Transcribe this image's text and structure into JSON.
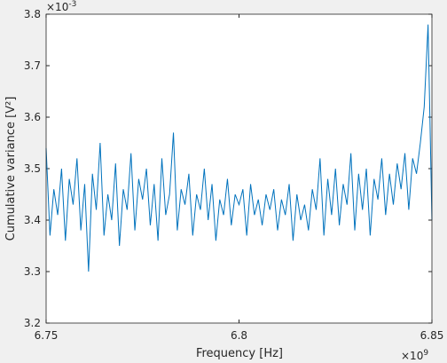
{
  "chart_data": {
    "type": "line",
    "x_label": "Frequency [Hz]",
    "y_label": "Cumulative variance [V²]",
    "x_exponent_base": "×10",
    "x_exponent": "9",
    "y_exponent_base": "×10",
    "y_exponent": "-3",
    "x": [
      6.75,
      6.751,
      6.752,
      6.753,
      6.754,
      6.755,
      6.756,
      6.757,
      6.758,
      6.759,
      6.76,
      6.761,
      6.762,
      6.763,
      6.764,
      6.765,
      6.766,
      6.767,
      6.768,
      6.769,
      6.77,
      6.771,
      6.772,
      6.773,
      6.774,
      6.775,
      6.776,
      6.777,
      6.778,
      6.779,
      6.78,
      6.781,
      6.782,
      6.783,
      6.784,
      6.785,
      6.786,
      6.787,
      6.788,
      6.789,
      6.79,
      6.791,
      6.792,
      6.793,
      6.794,
      6.795,
      6.796,
      6.797,
      6.798,
      6.799,
      6.8,
      6.801,
      6.802,
      6.803,
      6.804,
      6.805,
      6.806,
      6.807,
      6.808,
      6.809,
      6.81,
      6.811,
      6.812,
      6.813,
      6.814,
      6.815,
      6.816,
      6.817,
      6.818,
      6.819,
      6.82,
      6.821,
      6.822,
      6.823,
      6.824,
      6.825,
      6.826,
      6.827,
      6.828,
      6.829,
      6.83,
      6.831,
      6.832,
      6.833,
      6.834,
      6.835,
      6.836,
      6.837,
      6.838,
      6.839,
      6.84,
      6.841,
      6.842,
      6.843,
      6.844,
      6.845,
      6.846,
      6.847,
      6.848,
      6.849,
      6.85
    ],
    "series": [
      {
        "color": "#0072bd",
        "values": [
          3.54,
          3.37,
          3.46,
          3.41,
          3.5,
          3.36,
          3.48,
          3.43,
          3.52,
          3.38,
          3.47,
          3.3,
          3.49,
          3.42,
          3.55,
          3.37,
          3.45,
          3.4,
          3.51,
          3.35,
          3.46,
          3.42,
          3.53,
          3.38,
          3.48,
          3.44,
          3.5,
          3.39,
          3.47,
          3.36,
          3.52,
          3.41,
          3.45,
          3.57,
          3.38,
          3.46,
          3.43,
          3.49,
          3.37,
          3.45,
          3.42,
          3.5,
          3.4,
          3.47,
          3.36,
          3.44,
          3.41,
          3.48,
          3.39,
          3.45,
          3.43,
          3.46,
          3.37,
          3.47,
          3.41,
          3.44,
          3.39,
          3.45,
          3.42,
          3.46,
          3.38,
          3.44,
          3.41,
          3.47,
          3.36,
          3.45,
          3.4,
          3.43,
          3.38,
          3.46,
          3.42,
          3.52,
          3.37,
          3.48,
          3.41,
          3.5,
          3.39,
          3.47,
          3.43,
          3.53,
          3.38,
          3.49,
          3.42,
          3.5,
          3.37,
          3.48,
          3.44,
          3.52,
          3.41,
          3.49,
          3.43,
          3.51,
          3.46,
          3.53,
          3.42,
          3.52,
          3.49,
          3.55,
          3.62,
          3.78,
          3.4
        ]
      }
    ],
    "xlim": [
      6.75,
      6.85
    ],
    "xticks": [
      6.75,
      6.8,
      6.85
    ],
    "ylim": [
      3.2,
      3.8
    ],
    "yticks": [
      3.2,
      3.3,
      3.4,
      3.5,
      3.6,
      3.7,
      3.8
    ],
    "grid": false
  }
}
